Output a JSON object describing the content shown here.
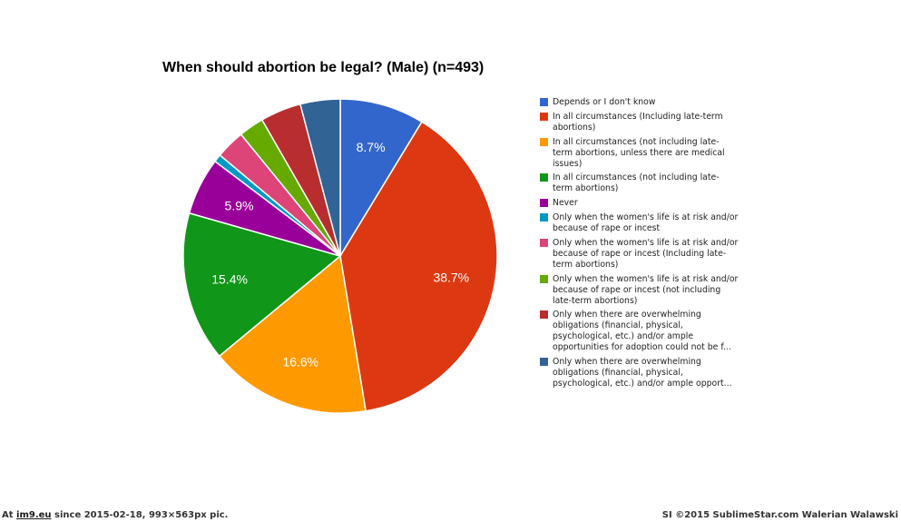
{
  "chart_data": {
    "type": "pie",
    "title": "When should abortion be legal? (Male) (n=493)",
    "legend_position": "right",
    "slices": [
      {
        "label": "Depends or I don't know",
        "value": 8.7,
        "color": "#3366cc",
        "value_label": "8.7%"
      },
      {
        "label": "In all circumstances (Including late-term abortions)",
        "value": 38.7,
        "color": "#dc3912",
        "value_label": "38.7%"
      },
      {
        "label": "In all circumstances (not including late-term abortions, unless there are medical issues)",
        "value": 16.6,
        "color": "#ff9900",
        "value_label": "16.6%"
      },
      {
        "label": "In all circumstances (not including late-term abortions)",
        "value": 15.4,
        "color": "#109618",
        "value_label": "15.4%"
      },
      {
        "label": "Never",
        "value": 5.9,
        "color": "#990099",
        "value_label": "5.9%"
      },
      {
        "label": "Only when the women's life is at risk and/or because of rape or incest",
        "value": 0.8,
        "color": "#0099c6",
        "value_label": ""
      },
      {
        "label": "Only when the women's life is at risk and/or because of rape or incest (Including late-term abortions)",
        "value": 3.0,
        "color": "#dd4477",
        "value_label": ""
      },
      {
        "label": "Only when the women's life is at risk and/or because of rape or incest (not including late-term abortions)",
        "value": 2.6,
        "color": "#66aa00",
        "value_label": ""
      },
      {
        "label": "Only when there are overwhelming obligations (financial, physical, psychological, etc.) and/or ample opportunities for adoption could not be f...",
        "value": 4.2,
        "color": "#b82e2e",
        "value_label": ""
      },
      {
        "label": "Only when there are overwhelming obligations (financial, physical, psychological, etc.) and/or ample opport...",
        "value": 4.1,
        "color": "#316395",
        "value_label": ""
      }
    ]
  },
  "legend_lines": [
    [
      "Depends or I don't know"
    ],
    [
      "In all circumstances (Including late-term",
      "abortions)"
    ],
    [
      "In all circumstances (not including late-",
      "term abortions, unless there are medical",
      "issues)"
    ],
    [
      "In all circumstances (not including late-",
      "term abortions)"
    ],
    [
      "Never"
    ],
    [
      "Only when the women's life is at risk and/or",
      "because of rape or incest"
    ],
    [
      "Only when the women's life is at risk and/or",
      "because of rape or incest (Including late-",
      "term abortions)"
    ],
    [
      "Only when the women's life is at risk and/or",
      "because of rape or incest (not including",
      "late-term abortions)"
    ],
    [
      "Only when there are overwhelming",
      "obligations (financial, physical,",
      "psychological, etc.) and/or ample",
      "opportunities for adoption could not be f..."
    ],
    [
      "Only when there are overwhelming",
      "obligations (financial, physical,",
      "psychological, etc.) and/or ample opport..."
    ]
  ],
  "footer": {
    "left_prefix": "At ",
    "left_site": "im9.eu",
    "left_suffix": " since 2015-02-18, 993×563px pic.",
    "right": "SI ©2015 SublimeStar.com Walerian Walawski"
  }
}
